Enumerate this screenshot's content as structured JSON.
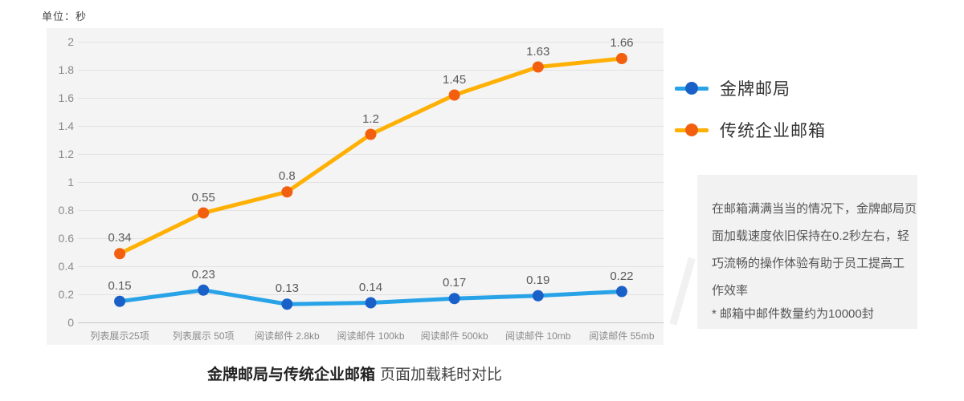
{
  "unit_label": "单位：秒",
  "chart_data": {
    "type": "line",
    "stacked": true,
    "title": "金牌邮局与传统企业邮箱 页面加载耗时对比",
    "ylabel": "单位：秒",
    "ylim": [
      0,
      2
    ],
    "ytick_step": 0.2,
    "yticks": [
      "2",
      "1.8",
      "1.6",
      "1.4",
      "1.2",
      "1",
      "0.8",
      "0.6",
      "0.4",
      "0.2",
      "0"
    ],
    "grid": "horizontal",
    "legend_position": "right",
    "categories": [
      "列表展示25项",
      "列表展示 50项",
      "阅读邮件 2.8kb",
      "阅读邮件 100kb",
      "阅读邮件 500kb",
      "阅读邮件 10mb",
      "阅读邮件 55mb"
    ],
    "series": [
      {
        "name": "金牌邮局",
        "line_color": "#29A3E8",
        "dot_color": "#1961C8",
        "values": [
          0.15,
          0.23,
          0.13,
          0.14,
          0.17,
          0.19,
          0.22
        ],
        "stack_base": false
      },
      {
        "name": "传统企业邮箱",
        "line_color": "#FFB005",
        "dot_color": "#F2600F",
        "values": [
          0.34,
          0.55,
          0.8,
          1.2,
          1.45,
          1.63,
          1.66
        ],
        "stack_base": true
      }
    ]
  },
  "legend": {
    "items": [
      {
        "label": "金牌邮局",
        "color": "#29A3E8",
        "dot_color": "#1961C8"
      },
      {
        "label": "传统企业邮箱",
        "color": "#FFB005",
        "dot_color": "#F2600F"
      }
    ]
  },
  "note_box": {
    "lines": [
      "在邮箱满满当当的情况下，金牌邮局页",
      "面加载速度依旧保持在0.2秒左右，轻",
      "巧流畅的操作体验有助于员工提高工",
      "作效率"
    ],
    "footnote": "* 邮箱中邮件数量约为10000封"
  },
  "caption": {
    "bold": "金牌邮局与传统企业邮箱",
    "regular": "页面加载耗时对比"
  }
}
